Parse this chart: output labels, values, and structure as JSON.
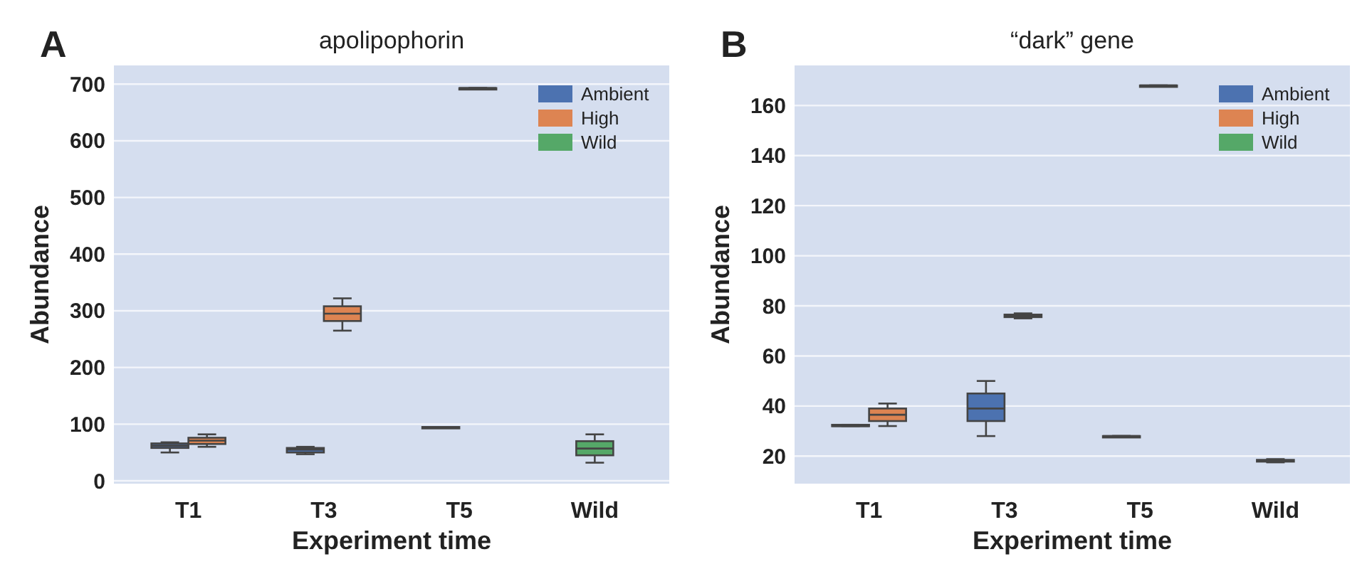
{
  "chart_data": [
    {
      "type": "box",
      "title": "apolipophorin",
      "xlabel": "Experiment time",
      "ylabel": "Abundance",
      "annotations": [
        "A"
      ],
      "categories": [
        "T1",
        "T3",
        "T5",
        "Wild"
      ],
      "ylim": [
        -5,
        733
      ],
      "yticks": [
        0,
        100,
        200,
        300,
        400,
        500,
        600,
        700
      ],
      "grid": "y",
      "legend": "top right",
      "series": [
        {
          "name": "Ambient",
          "color": "#4c72b0",
          "boxes": [
            {
              "low": 50,
              "q1": 58,
              "median": 62,
              "q3": 66,
              "high": 68
            },
            {
              "low": 47,
              "q1": 50,
              "median": 55,
              "q3": 58,
              "high": 60
            },
            {
              "low": 95,
              "q1": 95,
              "median": 95,
              "q3": 95,
              "high": 95
            },
            null
          ]
        },
        {
          "name": "High",
          "color": "#dd8452",
          "boxes": [
            {
              "low": 60,
              "q1": 65,
              "median": 71,
              "q3": 76,
              "high": 82
            },
            {
              "low": 265,
              "q1": 282,
              "median": 295,
              "q3": 308,
              "high": 322
            },
            {
              "low": 693,
              "q1": 693,
              "median": 693,
              "q3": 693,
              "high": 693
            },
            null
          ]
        },
        {
          "name": "Wild",
          "color": "#55a868",
          "boxes": [
            null,
            null,
            null,
            {
              "low": 32,
              "q1": 45,
              "median": 57,
              "q3": 70,
              "high": 82
            }
          ]
        }
      ]
    },
    {
      "type": "box",
      "title": "“dark” gene",
      "xlabel": "Experiment time",
      "ylabel": "Abundance",
      "annotations": [
        "B"
      ],
      "categories": [
        "T1",
        "T3",
        "T5",
        "Wild"
      ],
      "ylim": [
        9,
        176
      ],
      "yticks": [
        20,
        40,
        60,
        80,
        100,
        120,
        140,
        160
      ],
      "grid": "y",
      "legend": "top right",
      "series": [
        {
          "name": "Ambient",
          "color": "#4c72b0",
          "boxes": [
            {
              "low": 32,
              "q1": 32,
              "median": 32,
              "q3": 32.5,
              "high": 32.5
            },
            {
              "low": 28,
              "q1": 34,
              "median": 39,
              "q3": 45,
              "high": 50
            },
            {
              "low": 28,
              "q1": 28,
              "median": 28,
              "q3": 28,
              "high": 28
            },
            null
          ]
        },
        {
          "name": "High",
          "color": "#dd8452",
          "boxes": [
            {
              "low": 32,
              "q1": 34,
              "median": 36.5,
              "q3": 39,
              "high": 41
            },
            {
              "low": 75,
              "q1": 75.5,
              "median": 76,
              "q3": 76.5,
              "high": 77
            },
            {
              "low": 168,
              "q1": 168,
              "median": 168,
              "q3": 168,
              "high": 168
            },
            null
          ]
        },
        {
          "name": "Wild",
          "color": "#55a868",
          "boxes": [
            null,
            null,
            null,
            {
              "low": 17.5,
              "q1": 17.8,
              "median": 18,
              "q3": 18.5,
              "high": 18.8
            }
          ]
        }
      ]
    }
  ]
}
